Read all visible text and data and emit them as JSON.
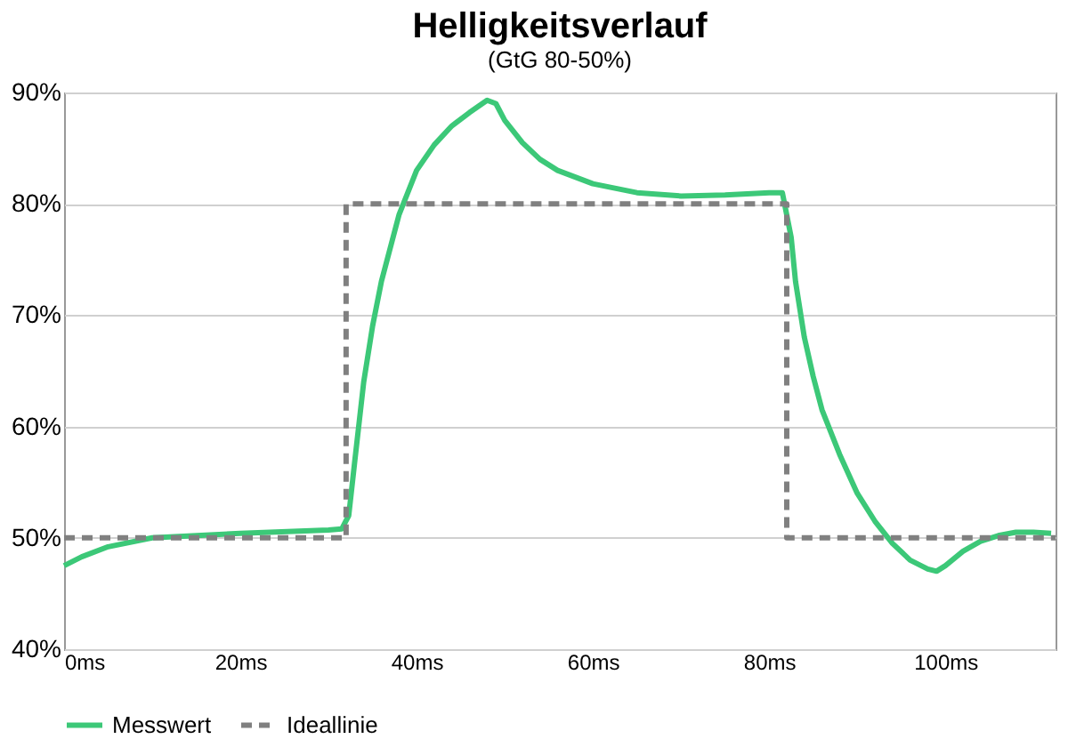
{
  "chart_data": {
    "type": "line",
    "title": "Helligkeitsverlauf",
    "subtitle": "(GtG 80-50%)",
    "xlim": [
      0,
      112.5
    ],
    "xticks": [
      {
        "value": 0,
        "label": "0ms"
      },
      {
        "value": 20,
        "label": "20ms"
      },
      {
        "value": 40,
        "label": "40ms"
      },
      {
        "value": 60,
        "label": "60ms"
      },
      {
        "value": 80,
        "label": "80ms"
      },
      {
        "value": 100,
        "label": "100ms"
      }
    ],
    "ylim": [
      40,
      90
    ],
    "yticks": [
      {
        "value": 40,
        "label": "40%"
      },
      {
        "value": 50,
        "label": "50%"
      },
      {
        "value": 60,
        "label": "60%"
      },
      {
        "value": 70,
        "label": "70%"
      },
      {
        "value": 80,
        "label": "80%"
      },
      {
        "value": 90,
        "label": "90%"
      }
    ],
    "grid": "y",
    "legend": "bottom",
    "series": [
      {
        "name": "Messwert",
        "color": "#3cc878",
        "line_style": "solid",
        "x": [
          0,
          2,
          5,
          10,
          20,
          30,
          31.5,
          32.3,
          33,
          34,
          35,
          36,
          38,
          40,
          42,
          44,
          46,
          48,
          49,
          50,
          52,
          54,
          56,
          60,
          65,
          70,
          75,
          80,
          81.5,
          82.5,
          83,
          84,
          85,
          86,
          88,
          90,
          92,
          94,
          96,
          98,
          99,
          100,
          102,
          104,
          106,
          108,
          110,
          112
        ],
        "values": [
          47.5,
          48.3,
          49.2,
          50.0,
          50.4,
          50.7,
          50.8,
          52,
          57,
          64,
          69,
          73,
          79,
          83,
          85.3,
          87,
          88.2,
          89.3,
          89.0,
          87.5,
          85.5,
          84,
          83,
          81.8,
          81.0,
          80.7,
          80.8,
          81,
          81,
          77,
          73,
          68,
          64.5,
          61.5,
          57.5,
          54,
          51.5,
          49.5,
          48,
          47.2,
          47,
          47.5,
          48.8,
          49.7,
          50.2,
          50.5,
          50.5,
          50.4
        ]
      },
      {
        "name": "Ideallinie",
        "color": "#808080",
        "line_style": "dashed",
        "x": [
          0,
          32,
          32,
          82,
          82,
          112.5
        ],
        "values": [
          50,
          50,
          80,
          80,
          50,
          50
        ]
      }
    ]
  }
}
